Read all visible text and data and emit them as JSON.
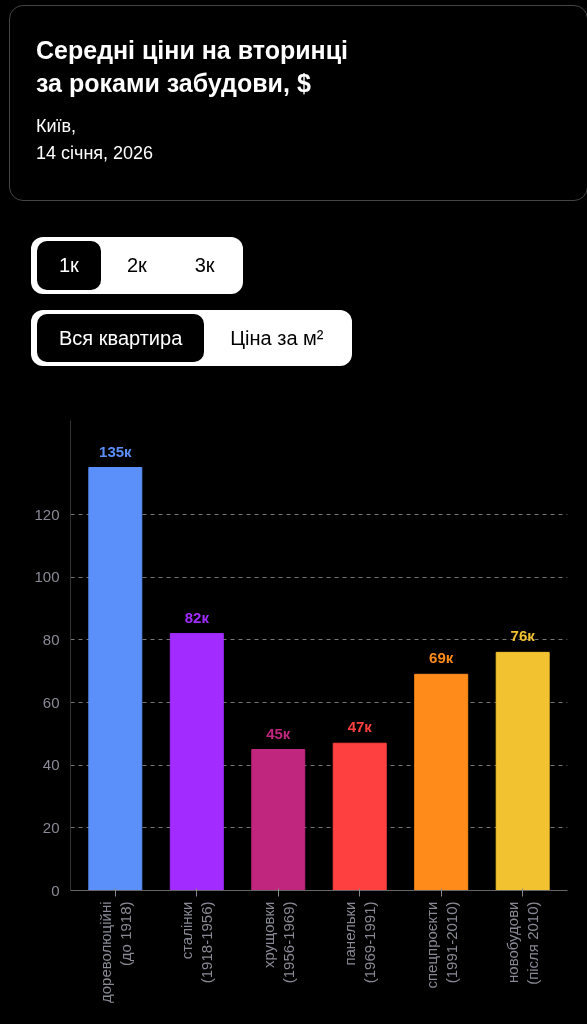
{
  "chart_data": {
    "type": "bar",
    "title": "Середні ціни на вторинці\nза роками забудови, $",
    "subtitle": "Київ,\n14 січня, 2026",
    "categories": [
      "дореволюційні\n(до 1918)",
      "сталінки\n(1918-1956)",
      "хрущовки\n(1956-1969)",
      "панельки\n(1969-1991)",
      "спецпроєкти\n(1991-2010)",
      "новобудови\n(після 2010)"
    ],
    "values": [
      135,
      82,
      45,
      47,
      69,
      76
    ],
    "value_labels": [
      "135к",
      "82к",
      "45к",
      "47к",
      "69к",
      "76к"
    ],
    "colors": [
      "#5b8ff9",
      "#a22cff",
      "#c0267e",
      "#ff4040",
      "#ff8c1a",
      "#f2c230"
    ],
    "ylim": [
      0,
      150
    ],
    "yticks": [
      0,
      20,
      40,
      60,
      80,
      100,
      120
    ],
    "grid": "y",
    "annotations": [
      "1к",
      "2к",
      "3к",
      "Вся квартира",
      "Ціна за м²"
    ]
  }
}
